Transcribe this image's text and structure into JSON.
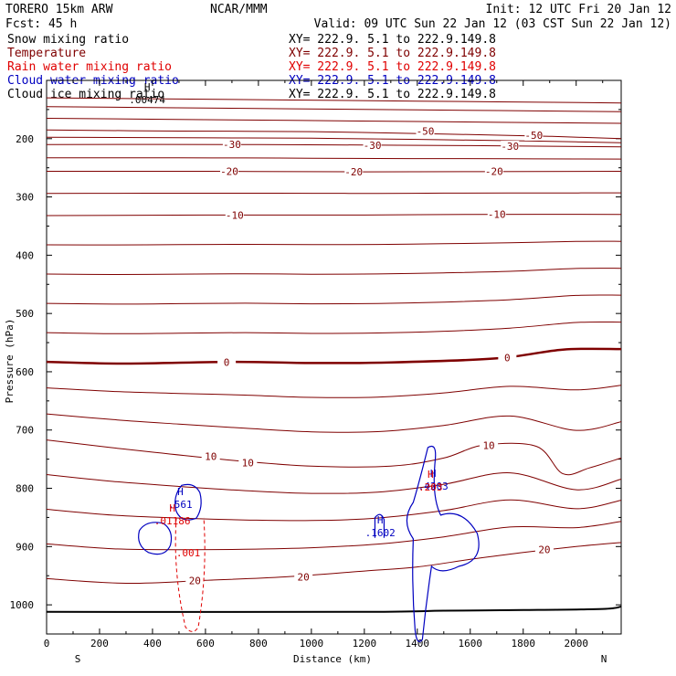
{
  "header": {
    "model": "TORERO  15km ARW",
    "center": "NCAR/MMM",
    "init": "Init: 12 UTC Fri 20 Jan 12",
    "fcst": "Fcst:   45 h",
    "valid": "Valid: 09 UTC Sun 22 Jan 12 (03 CST Sun 22 Jan 12)"
  },
  "fields": [
    {
      "name": "Snow mixing ratio",
      "xy": "XY= 222.9.  5.1 to 222.9.149.8",
      "color": "#000000"
    },
    {
      "name": "Temperature",
      "xy": "XY= 222.9.  5.1 to 222.9.149.8",
      "color": "#7f0000"
    },
    {
      "name": "Rain water mixing ratio",
      "xy": "XY= 222.9.  5.1 to 222.9.149.8",
      "color": "#e00000"
    },
    {
      "name": "Cloud water mixing ratio",
      "xy": "XY= 222.9.  5.1 to 222.9.149.8",
      "color": "#0000c0"
    },
    {
      "name": "Cloud ice mixing ratio",
      "xy": "XY= 222.9.  5.1 to 222.9.149.8",
      "color": "#000000"
    }
  ],
  "chart_data": {
    "type": "contour",
    "xlabel": "Distance (km)",
    "ylabel": "Pressure (hPa)",
    "xlim": [
      0,
      2170
    ],
    "ylim": [
      1050,
      100
    ],
    "x_ticks": [
      "0",
      "200",
      "400",
      "600",
      "800",
      "1000",
      "1200",
      "1400",
      "1600",
      "1800",
      "2000"
    ],
    "y_ticks": [
      "200",
      "300",
      "400",
      "500",
      "600",
      "700",
      "800",
      "900",
      "1000"
    ],
    "x_end_labels": {
      "left": "S",
      "right": "N"
    },
    "temperature_contours": [
      {
        "label": "-50",
        "points": [
          [
            0,
            185
          ],
          [
            500,
            187
          ],
          [
            1000,
            188
          ],
          [
            1500,
            192
          ],
          [
            1900,
            196
          ],
          [
            2170,
            200
          ]
        ]
      },
      {
        "label": "-30",
        "points": [
          [
            0,
            210
          ],
          [
            800,
            210
          ],
          [
            1200,
            211
          ],
          [
            1600,
            212
          ],
          [
            2170,
            214
          ]
        ]
      },
      {
        "label": "-20",
        "points": [
          [
            0,
            256
          ],
          [
            600,
            256
          ],
          [
            1200,
            257
          ],
          [
            2170,
            256
          ]
        ]
      },
      {
        "label": "-10",
        "points": [
          [
            0,
            332
          ],
          [
            600,
            331
          ],
          [
            1200,
            331
          ],
          [
            1600,
            330
          ],
          [
            2170,
            330
          ]
        ]
      },
      {
        "label": "0",
        "points": [
          [
            0,
            583
          ],
          [
            300,
            586
          ],
          [
            700,
            583
          ],
          [
            1000,
            585
          ],
          [
            1300,
            584
          ],
          [
            1700,
            577
          ],
          [
            1950,
            562
          ],
          [
            2170,
            561
          ]
        ]
      },
      {
        "label": "10",
        "points": [
          [
            0,
            717
          ],
          [
            300,
            733
          ],
          [
            700,
            752
          ],
          [
            1000,
            762
          ],
          [
            1300,
            762
          ],
          [
            1500,
            748
          ],
          [
            1650,
            726
          ],
          [
            1850,
            728
          ],
          [
            1950,
            775
          ],
          [
            2050,
            765
          ],
          [
            2170,
            748
          ]
        ]
      },
      {
        "label": "20",
        "points": [
          [
            0,
            955
          ],
          [
            300,
            963
          ],
          [
            600,
            958
          ],
          [
            900,
            952
          ],
          [
            1200,
            942
          ],
          [
            1400,
            935
          ],
          [
            1600,
            922
          ],
          [
            1800,
            910
          ],
          [
            2000,
            900
          ],
          [
            2170,
            893
          ]
        ]
      }
    ],
    "temperature_labels": [
      {
        "text": "-50",
        "x": 1430,
        "p": 187
      },
      {
        "text": "-50",
        "x": 1840,
        "p": 194
      },
      {
        "text": "-30",
        "x": 700,
        "p": 210
      },
      {
        "text": "-30",
        "x": 1230,
        "p": 211
      },
      {
        "text": "-30",
        "x": 1750,
        "p": 213
      },
      {
        "text": "-20",
        "x": 690,
        "p": 256
      },
      {
        "text": "-20",
        "x": 1160,
        "p": 257
      },
      {
        "text": "-20",
        "x": 1690,
        "p": 256
      },
      {
        "text": "-10",
        "x": 710,
        "p": 331
      },
      {
        "text": "-10",
        "x": 1700,
        "p": 330
      },
      {
        "text": "0",
        "x": 680,
        "p": 584
      },
      {
        "text": "0",
        "x": 1740,
        "p": 576
      },
      {
        "text": "10",
        "x": 620,
        "p": 745
      },
      {
        "text": "10",
        "x": 760,
        "p": 756
      },
      {
        "text": "10",
        "x": 1670,
        "p": 726
      },
      {
        "text": "20",
        "x": 560,
        "p": 958
      },
      {
        "text": "20",
        "x": 970,
        "p": 952
      },
      {
        "text": "20",
        "x": 1880,
        "p": 905
      }
    ],
    "markers": [
      {
        "letter": "H",
        "value": ".00474",
        "x": 380,
        "p": 117,
        "color": "#000000"
      },
      {
        "letter": "H",
        "value": ".561",
        "x": 505,
        "p": 812,
        "color": "#0000c0"
      },
      {
        "letter": "H",
        "value": ".01186",
        "x": 475,
        "p": 840,
        "color": "#e00000"
      },
      {
        "letter": "",
        "value": ".001",
        "x": 535,
        "p": 895,
        "color": "#e00000"
      },
      {
        "letter": "H",
        "value": ".1602",
        "x": 1260,
        "p": 860,
        "color": "#0000c0"
      },
      {
        "letter": "H",
        "value": ".4203",
        "x": 1460,
        "p": 780,
        "color": "#0000c0"
      },
      {
        "letter": "H",
        "value": ".203",
        "x": 1450,
        "p": 782,
        "color": "#e00000"
      }
    ]
  }
}
